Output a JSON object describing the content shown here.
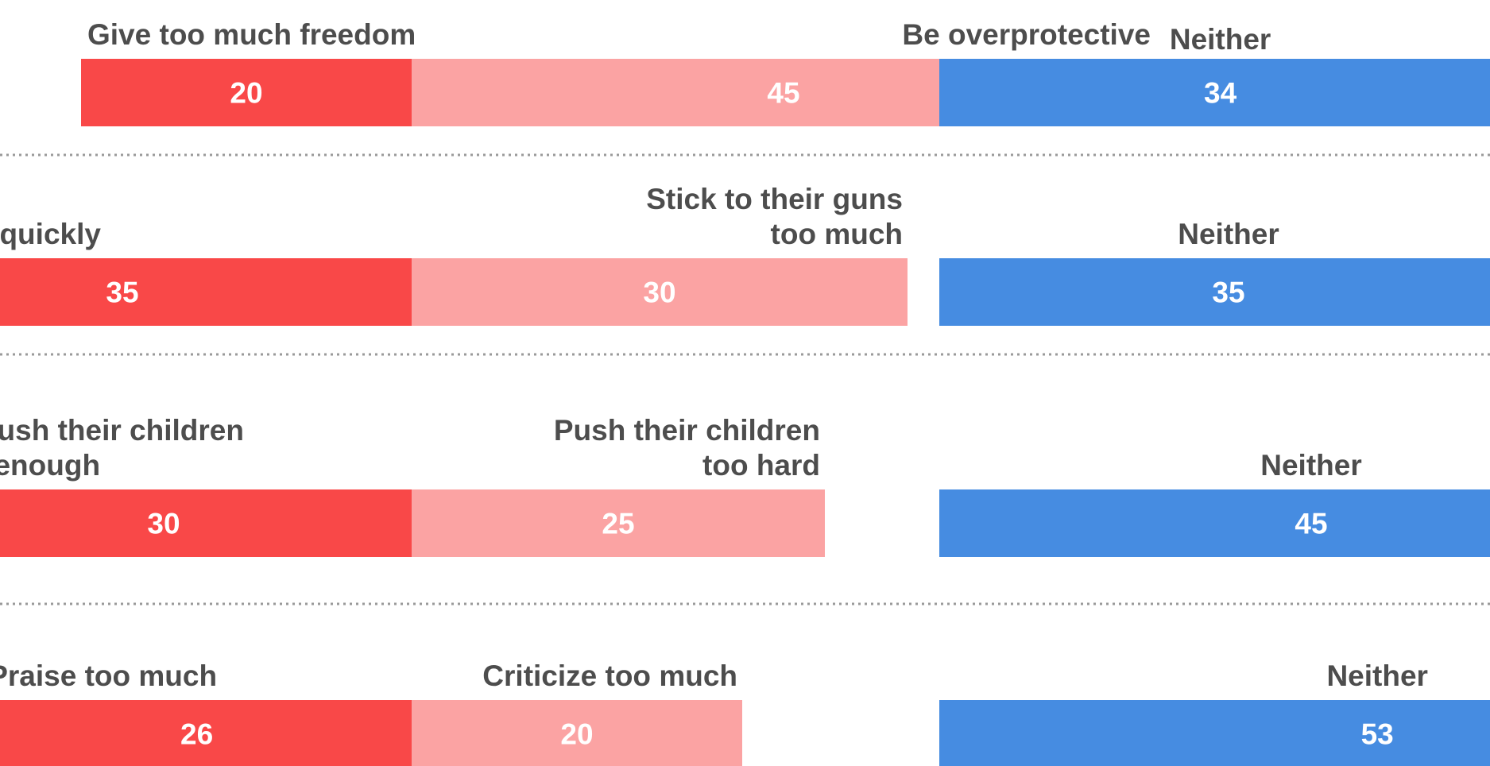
{
  "colors": {
    "left": "#f94848",
    "middle": "#fba3a3",
    "neither": "#468ce1",
    "label_text": "#4d4d4d",
    "value_text": "#ffffff"
  },
  "chart_data": {
    "type": "bar",
    "orientation": "horizontal",
    "stacking": "diverging",
    "legend": "none",
    "grid": false,
    "units": "percent",
    "rows": [
      {
        "left_label": [
          "Give too much freedom"
        ],
        "middle_label": [
          "Be overprotective"
        ],
        "neither_label": "Neither",
        "left": 20,
        "middle": 45,
        "neither": 34
      },
      {
        "left_label": [
          "Give in too quickly"
        ],
        "middle_label": [
          "Stick to their guns",
          "too much"
        ],
        "neither_label": "Neither",
        "left": 35,
        "middle": 30,
        "neither": 35
      },
      {
        "left_label": [
          "Not push their children",
          "hard enough"
        ],
        "middle_label": [
          "Push their children",
          "too hard"
        ],
        "neither_label": "Neither",
        "left": 30,
        "middle": 25,
        "neither": 45
      },
      {
        "left_label": [
          "Praise too much"
        ],
        "middle_label": [
          "Criticize too much"
        ],
        "neither_label": "Neither",
        "left": 26,
        "middle": 20,
        "neither": 53
      }
    ]
  }
}
